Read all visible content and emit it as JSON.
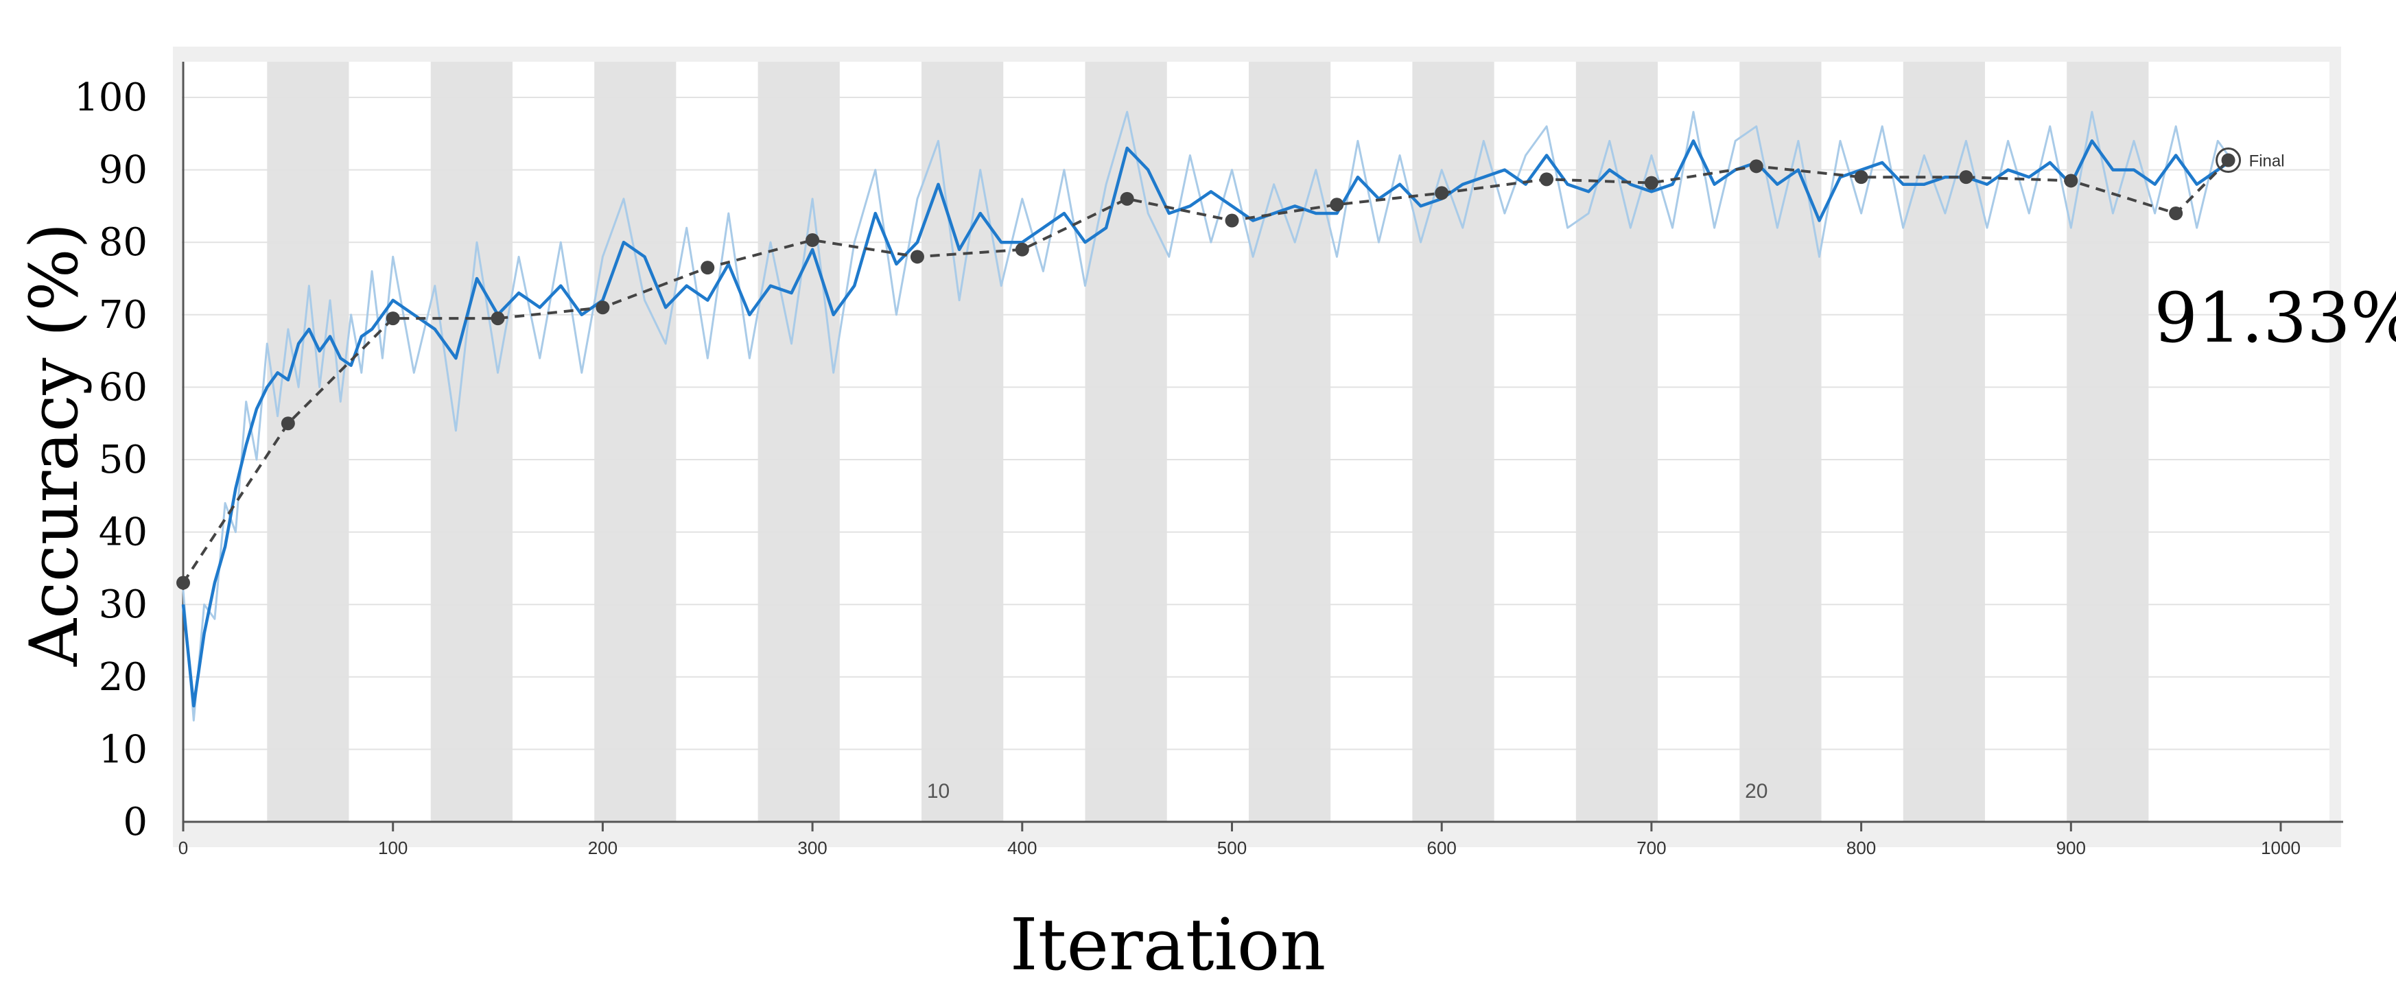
{
  "chart_data": {
    "type": "line",
    "xlabel": "Iteration",
    "ylabel": "Accuracy (%)",
    "xlim": [
      0,
      1000
    ],
    "ylim": [
      0,
      100
    ],
    "x_ticks": [
      0,
      100,
      200,
      300,
      400,
      500,
      600,
      700,
      800,
      900,
      1000
    ],
    "y_ticks": [
      0,
      10,
      20,
      30,
      40,
      50,
      60,
      70,
      80,
      90,
      100
    ],
    "grid": true,
    "epoch_labels": [
      {
        "label": "10",
        "x": 360
      },
      {
        "label": "20",
        "x": 750
      }
    ],
    "epoch_bands": [
      [
        40,
        79
      ],
      [
        118,
        157
      ],
      [
        196,
        235
      ],
      [
        274,
        313
      ],
      [
        352,
        391
      ],
      [
        430,
        469
      ],
      [
        508,
        547
      ],
      [
        586,
        625
      ],
      [
        664,
        703
      ],
      [
        742,
        781
      ],
      [
        820,
        859
      ],
      [
        898,
        937
      ]
    ],
    "series": [
      {
        "role": "smoothed training accuracy",
        "color": "#1f7acc",
        "x": [
          0,
          5,
          10,
          15,
          20,
          25,
          30,
          35,
          40,
          45,
          50,
          55,
          60,
          65,
          70,
          75,
          80,
          85,
          90,
          95,
          100,
          110,
          120,
          130,
          140,
          150,
          160,
          170,
          180,
          190,
          200,
          210,
          220,
          230,
          240,
          250,
          260,
          270,
          280,
          290,
          300,
          310,
          320,
          330,
          340,
          350,
          360,
          370,
          380,
          390,
          400,
          410,
          420,
          430,
          440,
          450,
          460,
          470,
          480,
          490,
          500,
          510,
          520,
          530,
          540,
          550,
          560,
          570,
          580,
          590,
          600,
          610,
          620,
          630,
          640,
          650,
          660,
          670,
          680,
          690,
          700,
          710,
          720,
          730,
          740,
          750,
          760,
          770,
          780,
          790,
          800,
          810,
          820,
          830,
          840,
          850,
          860,
          870,
          880,
          890,
          900,
          910,
          920,
          930,
          940,
          950,
          960,
          970,
          975
        ],
        "y": [
          30,
          16,
          26,
          33,
          38,
          46,
          52,
          57,
          60,
          62,
          61,
          66,
          68,
          65,
          67,
          64,
          63,
          67,
          68,
          70,
          72,
          70,
          68,
          64,
          75,
          70,
          73,
          71,
          74,
          70,
          72,
          80,
          78,
          71,
          74,
          72,
          77,
          70,
          74,
          73,
          79,
          70,
          74,
          84,
          77,
          80,
          88,
          79,
          84,
          80,
          80,
          82,
          84,
          80,
          82,
          93,
          90,
          84,
          85,
          87,
          85,
          83,
          84,
          85,
          84,
          84,
          89,
          86,
          88,
          85,
          86,
          88,
          89,
          90,
          88,
          92,
          88,
          87,
          90,
          88,
          87,
          88,
          94,
          88,
          90,
          91,
          88,
          90,
          83,
          89,
          90,
          91,
          88,
          88,
          89,
          89,
          88,
          90,
          89,
          91,
          88,
          94,
          90,
          90,
          88,
          92,
          88,
          90,
          91
        ]
      },
      {
        "role": "raw training accuracy",
        "color": "#a9cbe8",
        "x": [
          0,
          5,
          10,
          15,
          20,
          25,
          30,
          35,
          40,
          45,
          50,
          55,
          60,
          65,
          70,
          75,
          80,
          85,
          90,
          95,
          100,
          110,
          120,
          130,
          140,
          150,
          160,
          170,
          180,
          190,
          200,
          210,
          220,
          230,
          240,
          250,
          260,
          270,
          280,
          290,
          300,
          310,
          320,
          330,
          340,
          350,
          360,
          370,
          380,
          390,
          400,
          410,
          420,
          430,
          440,
          450,
          460,
          470,
          480,
          490,
          500,
          510,
          520,
          530,
          540,
          550,
          560,
          570,
          580,
          590,
          600,
          610,
          620,
          630,
          640,
          650,
          660,
          670,
          680,
          690,
          700,
          710,
          720,
          730,
          740,
          750,
          760,
          770,
          780,
          790,
          800,
          810,
          820,
          830,
          840,
          850,
          860,
          870,
          880,
          890,
          900,
          910,
          920,
          930,
          940,
          950,
          960,
          970,
          975
        ],
        "y": [
          32,
          14,
          30,
          28,
          44,
          40,
          58,
          50,
          66,
          56,
          68,
          60,
          74,
          60,
          72,
          58,
          70,
          62,
          76,
          64,
          78,
          62,
          74,
          54,
          80,
          62,
          78,
          64,
          80,
          62,
          78,
          86,
          72,
          66,
          82,
          64,
          84,
          64,
          80,
          66,
          86,
          62,
          80,
          90,
          70,
          86,
          94,
          72,
          90,
          74,
          86,
          76,
          90,
          74,
          88,
          98,
          84,
          78,
          92,
          80,
          90,
          78,
          88,
          80,
          90,
          78,
          94,
          80,
          92,
          80,
          90,
          82,
          94,
          84,
          92,
          96,
          82,
          84,
          94,
          82,
          92,
          82,
          98,
          82,
          94,
          96,
          82,
          94,
          78,
          94,
          84,
          96,
          82,
          92,
          84,
          94,
          82,
          94,
          84,
          96,
          82,
          98,
          84,
          94,
          84,
          96,
          82,
          94,
          92
        ]
      },
      {
        "role": "validation accuracy",
        "color": "#444444",
        "style": "dashed",
        "x": [
          0,
          50,
          100,
          150,
          200,
          250,
          300,
          350,
          400,
          450,
          500,
          550,
          600,
          650,
          700,
          750,
          800,
          850,
          900,
          950,
          975
        ],
        "y": [
          33,
          55,
          69.5,
          69.5,
          71,
          76.5,
          80.3,
          78,
          79,
          86,
          83,
          85.2,
          86.8,
          88.7,
          88.2,
          90.5,
          89,
          89,
          88.5,
          84,
          91.33
        ]
      }
    ],
    "annotations": [
      {
        "text": "Final",
        "x": 975,
        "y": 91.33
      },
      {
        "text": "91.33%"
      }
    ]
  }
}
